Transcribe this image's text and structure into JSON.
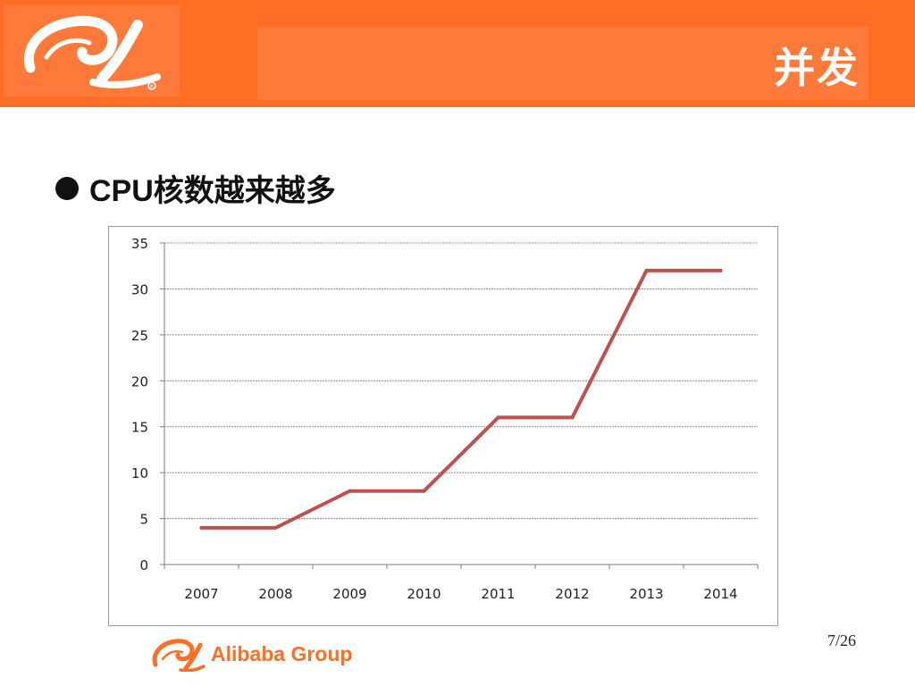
{
  "header": {
    "title": "并发",
    "logo_icon": "alibaba-smile-logo-icon"
  },
  "bullet": {
    "text": "CPU核数越来越多"
  },
  "chart_data": {
    "type": "line",
    "x": [
      "2007",
      "2008",
      "2009",
      "2010",
      "2011",
      "2012",
      "2013",
      "2014"
    ],
    "series": [
      {
        "values": [
          4,
          4,
          8,
          8,
          16,
          16,
          32,
          32
        ]
      }
    ],
    "title": "",
    "xlabel": "",
    "ylabel": "",
    "ylim": [
      0,
      35
    ],
    "yticks": [
      0,
      5,
      10,
      15,
      20,
      25,
      30,
      35
    ],
    "grid": true,
    "legend": "none",
    "line_color": "#c0504d"
  },
  "footer": {
    "brand": "Alibaba Group",
    "page_number": "7/26"
  },
  "colors": {
    "brand_orange": "#ff6e24",
    "header_band": "#ff7a3a"
  }
}
